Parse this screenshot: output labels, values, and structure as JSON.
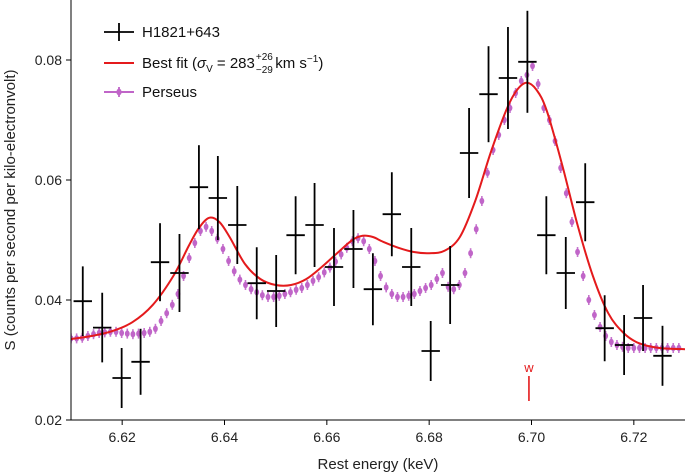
{
  "chart_data": {
    "type": "scatter",
    "xlabel": "Rest energy (keV)",
    "ylabel": "S (counts per second per kilo-electronvolt)",
    "xlim": [
      6.61,
      6.73
    ],
    "ylim": [
      0.02,
      0.09
    ],
    "x_ticks": [
      6.62,
      6.64,
      6.66,
      6.68,
      6.7,
      6.72
    ],
    "x_tick_labels": [
      "6.62",
      "6.64",
      "6.66",
      "6.68",
      "6.70",
      "6.72"
    ],
    "y_ticks": [
      0.02,
      0.04,
      0.06,
      0.08
    ],
    "y_tick_labels": [
      "0.02",
      "0.04",
      "0.06",
      "0.08"
    ],
    "legend": {
      "placement": "top-left",
      "entries": [
        {
          "label": "H1821+643",
          "color": "#000000",
          "marker": "errorbar"
        },
        {
          "label": "Best fit (σV = 283 km s−1)",
          "label_prefix": "Best fit (",
          "sigma": "σ",
          "sigma_sub": "V",
          "value": " = 283",
          "err_up": "+26",
          "err_down": "−29",
          "unit": " km s",
          "unit_sup": "−1",
          "suffix": ")",
          "color": "#e41a1c",
          "marker": "line"
        },
        {
          "label": "Perseus",
          "color": "#c065c8",
          "marker": "errorbar"
        }
      ]
    },
    "annotation": {
      "text": "w",
      "x": 6.6995,
      "color": "#e41a1c"
    },
    "series": [
      {
        "name": "H1821+643",
        "color": "#000000",
        "points": [
          {
            "x": 6.6123,
            "y": 0.0398,
            "xerr": 0.0018,
            "yerr": 0.0058
          },
          {
            "x": 6.6161,
            "y": 0.0354,
            "xerr": 0.0018,
            "yerr": 0.0058
          },
          {
            "x": 6.6199,
            "y": 0.027,
            "xerr": 0.0018,
            "yerr": 0.005
          },
          {
            "x": 6.6236,
            "y": 0.0297,
            "xerr": 0.0018,
            "yerr": 0.0055
          },
          {
            "x": 6.6274,
            "y": 0.0463,
            "xerr": 0.0018,
            "yerr": 0.0065
          },
          {
            "x": 6.6312,
            "y": 0.0445,
            "xerr": 0.0018,
            "yerr": 0.0065
          },
          {
            "x": 6.635,
            "y": 0.0588,
            "xerr": 0.0018,
            "yerr": 0.007
          },
          {
            "x": 6.6387,
            "y": 0.057,
            "xerr": 0.0018,
            "yerr": 0.007
          },
          {
            "x": 6.6425,
            "y": 0.0525,
            "xerr": 0.0018,
            "yerr": 0.0065
          },
          {
            "x": 6.6463,
            "y": 0.0428,
            "xerr": 0.0018,
            "yerr": 0.006
          },
          {
            "x": 6.6501,
            "y": 0.0415,
            "xerr": 0.0018,
            "yerr": 0.006
          },
          {
            "x": 6.6539,
            "y": 0.0508,
            "xerr": 0.0018,
            "yerr": 0.0065
          },
          {
            "x": 6.6576,
            "y": 0.0525,
            "xerr": 0.0018,
            "yerr": 0.007
          },
          {
            "x": 6.6614,
            "y": 0.0455,
            "xerr": 0.0018,
            "yerr": 0.0065
          },
          {
            "x": 6.6652,
            "y": 0.0485,
            "xerr": 0.0018,
            "yerr": 0.0065
          },
          {
            "x": 6.669,
            "y": 0.0418,
            "xerr": 0.0018,
            "yerr": 0.006
          },
          {
            "x": 6.6727,
            "y": 0.0543,
            "xerr": 0.0018,
            "yerr": 0.007
          },
          {
            "x": 6.6765,
            "y": 0.0455,
            "xerr": 0.0018,
            "yerr": 0.0065
          },
          {
            "x": 6.6803,
            "y": 0.0315,
            "xerr": 0.0018,
            "yerr": 0.005
          },
          {
            "x": 6.6841,
            "y": 0.0425,
            "xerr": 0.0018,
            "yerr": 0.0065
          },
          {
            "x": 6.6878,
            "y": 0.0645,
            "xerr": 0.0018,
            "yerr": 0.0075
          },
          {
            "x": 6.6916,
            "y": 0.0743,
            "xerr": 0.0018,
            "yerr": 0.008
          },
          {
            "x": 6.6954,
            "y": 0.077,
            "xerr": 0.0018,
            "yerr": 0.0085
          },
          {
            "x": 6.6992,
            "y": 0.0797,
            "xerr": 0.0018,
            "yerr": 0.0085
          },
          {
            "x": 6.7029,
            "y": 0.0508,
            "xerr": 0.0018,
            "yerr": 0.0065
          },
          {
            "x": 6.7067,
            "y": 0.0445,
            "xerr": 0.0018,
            "yerr": 0.006
          },
          {
            "x": 6.7105,
            "y": 0.0563,
            "xerr": 0.0018,
            "yerr": 0.0065
          },
          {
            "x": 6.7143,
            "y": 0.0353,
            "xerr": 0.0018,
            "yerr": 0.0055
          },
          {
            "x": 6.7181,
            "y": 0.0325,
            "xerr": 0.0018,
            "yerr": 0.005
          },
          {
            "x": 6.7218,
            "y": 0.037,
            "xerr": 0.0018,
            "yerr": 0.0055
          },
          {
            "x": 6.7256,
            "y": 0.0307,
            "xerr": 0.0018,
            "yerr": 0.005
          }
        ]
      },
      {
        "name": "Perseus",
        "color": "#c065c8",
        "points": [
          {
            "x": 6.61,
            "y": 0.0336
          },
          {
            "x": 6.6111,
            "y": 0.0336
          },
          {
            "x": 6.6122,
            "y": 0.0337
          },
          {
            "x": 6.6133,
            "y": 0.034
          },
          {
            "x": 6.6144,
            "y": 0.0343
          },
          {
            "x": 6.6155,
            "y": 0.0345
          },
          {
            "x": 6.6166,
            "y": 0.0346
          },
          {
            "x": 6.6177,
            "y": 0.0347
          },
          {
            "x": 6.6188,
            "y": 0.0347
          },
          {
            "x": 6.6199,
            "y": 0.0345
          },
          {
            "x": 6.621,
            "y": 0.0344
          },
          {
            "x": 6.6221,
            "y": 0.0343
          },
          {
            "x": 6.6232,
            "y": 0.0344
          },
          {
            "x": 6.6243,
            "y": 0.0345
          },
          {
            "x": 6.6254,
            "y": 0.0347
          },
          {
            "x": 6.6265,
            "y": 0.0352
          },
          {
            "x": 6.6276,
            "y": 0.0365
          },
          {
            "x": 6.6287,
            "y": 0.0378
          },
          {
            "x": 6.6298,
            "y": 0.0392
          },
          {
            "x": 6.6309,
            "y": 0.041
          },
          {
            "x": 6.632,
            "y": 0.044
          },
          {
            "x": 6.6331,
            "y": 0.047
          },
          {
            "x": 6.6342,
            "y": 0.0495
          },
          {
            "x": 6.6353,
            "y": 0.0515
          },
          {
            "x": 6.6364,
            "y": 0.0522
          },
          {
            "x": 6.6375,
            "y": 0.0515
          },
          {
            "x": 6.6386,
            "y": 0.0502
          },
          {
            "x": 6.6397,
            "y": 0.0485
          },
          {
            "x": 6.6408,
            "y": 0.0465
          },
          {
            "x": 6.6419,
            "y": 0.0448
          },
          {
            "x": 6.643,
            "y": 0.0434
          },
          {
            "x": 6.6441,
            "y": 0.0425
          },
          {
            "x": 6.6452,
            "y": 0.0418
          },
          {
            "x": 6.6463,
            "y": 0.0413
          },
          {
            "x": 6.6474,
            "y": 0.0408
          },
          {
            "x": 6.6485,
            "y": 0.0405
          },
          {
            "x": 6.6496,
            "y": 0.0405
          },
          {
            "x": 6.6507,
            "y": 0.0407
          },
          {
            "x": 6.6518,
            "y": 0.041
          },
          {
            "x": 6.6529,
            "y": 0.0413
          },
          {
            "x": 6.654,
            "y": 0.0417
          },
          {
            "x": 6.6551,
            "y": 0.042
          },
          {
            "x": 6.6562,
            "y": 0.0425
          },
          {
            "x": 6.6573,
            "y": 0.0432
          },
          {
            "x": 6.6584,
            "y": 0.0438
          },
          {
            "x": 6.6595,
            "y": 0.0446
          },
          {
            "x": 6.6606,
            "y": 0.0454
          },
          {
            "x": 6.6617,
            "y": 0.0464
          },
          {
            "x": 6.6628,
            "y": 0.0476
          },
          {
            "x": 6.6639,
            "y": 0.0487
          },
          {
            "x": 6.665,
            "y": 0.0498
          },
          {
            "x": 6.6661,
            "y": 0.0503
          },
          {
            "x": 6.6672,
            "y": 0.0498
          },
          {
            "x": 6.6683,
            "y": 0.0485
          },
          {
            "x": 6.6694,
            "y": 0.0465
          },
          {
            "x": 6.6705,
            "y": 0.044
          },
          {
            "x": 6.6716,
            "y": 0.0421
          },
          {
            "x": 6.6727,
            "y": 0.041
          },
          {
            "x": 6.6738,
            "y": 0.0405
          },
          {
            "x": 6.6749,
            "y": 0.0405
          },
          {
            "x": 6.676,
            "y": 0.0407
          },
          {
            "x": 6.6771,
            "y": 0.041
          },
          {
            "x": 6.6782,
            "y": 0.0415
          },
          {
            "x": 6.6793,
            "y": 0.042
          },
          {
            "x": 6.6804,
            "y": 0.0425
          },
          {
            "x": 6.6815,
            "y": 0.0435
          },
          {
            "x": 6.6826,
            "y": 0.0445
          },
          {
            "x": 6.6837,
            "y": 0.0422
          },
          {
            "x": 6.6848,
            "y": 0.0418
          },
          {
            "x": 6.6859,
            "y": 0.0425
          },
          {
            "x": 6.687,
            "y": 0.0445
          },
          {
            "x": 6.6881,
            "y": 0.0478
          },
          {
            "x": 6.6892,
            "y": 0.0518
          },
          {
            "x": 6.6903,
            "y": 0.0565
          },
          {
            "x": 6.6914,
            "y": 0.0612
          },
          {
            "x": 6.6925,
            "y": 0.065
          },
          {
            "x": 6.6936,
            "y": 0.0675
          },
          {
            "x": 6.6947,
            "y": 0.07
          },
          {
            "x": 6.6958,
            "y": 0.072
          },
          {
            "x": 6.6969,
            "y": 0.0745
          },
          {
            "x": 6.698,
            "y": 0.0765
          },
          {
            "x": 6.6991,
            "y": 0.0775
          },
          {
            "x": 6.7002,
            "y": 0.079
          },
          {
            "x": 6.7013,
            "y": 0.076
          },
          {
            "x": 6.7024,
            "y": 0.072
          },
          {
            "x": 6.7035,
            "y": 0.07
          },
          {
            "x": 6.7046,
            "y": 0.0665
          },
          {
            "x": 6.7057,
            "y": 0.062
          },
          {
            "x": 6.7068,
            "y": 0.0578
          },
          {
            "x": 6.7079,
            "y": 0.053
          },
          {
            "x": 6.709,
            "y": 0.048
          },
          {
            "x": 6.7101,
            "y": 0.044
          },
          {
            "x": 6.7112,
            "y": 0.04
          },
          {
            "x": 6.7123,
            "y": 0.0375
          },
          {
            "x": 6.7134,
            "y": 0.0355
          },
          {
            "x": 6.7145,
            "y": 0.034
          },
          {
            "x": 6.7156,
            "y": 0.033
          },
          {
            "x": 6.7167,
            "y": 0.0325
          },
          {
            "x": 6.7178,
            "y": 0.0322
          },
          {
            "x": 6.7189,
            "y": 0.032
          },
          {
            "x": 6.72,
            "y": 0.032
          },
          {
            "x": 6.7211,
            "y": 0.032
          },
          {
            "x": 6.7222,
            "y": 0.032
          },
          {
            "x": 6.7233,
            "y": 0.032
          },
          {
            "x": 6.7244,
            "y": 0.032
          },
          {
            "x": 6.7255,
            "y": 0.032
          },
          {
            "x": 6.7266,
            "y": 0.032
          },
          {
            "x": 6.7277,
            "y": 0.032
          },
          {
            "x": 6.7288,
            "y": 0.032
          }
        ]
      },
      {
        "name": "Best fit",
        "color": "#e41a1c",
        "points": [
          {
            "x": 6.61,
            "y": 0.0335
          },
          {
            "x": 6.614,
            "y": 0.034
          },
          {
            "x": 6.618,
            "y": 0.0348
          },
          {
            "x": 6.622,
            "y": 0.0363
          },
          {
            "x": 6.626,
            "y": 0.0392
          },
          {
            "x": 6.63,
            "y": 0.044
          },
          {
            "x": 6.633,
            "y": 0.049
          },
          {
            "x": 6.635,
            "y": 0.052
          },
          {
            "x": 6.637,
            "y": 0.0537
          },
          {
            "x": 6.639,
            "y": 0.053
          },
          {
            "x": 6.641,
            "y": 0.0505
          },
          {
            "x": 6.644,
            "y": 0.046
          },
          {
            "x": 6.647,
            "y": 0.0435
          },
          {
            "x": 6.65,
            "y": 0.0425
          },
          {
            "x": 6.653,
            "y": 0.0425
          },
          {
            "x": 6.656,
            "y": 0.0435
          },
          {
            "x": 6.659,
            "y": 0.0455
          },
          {
            "x": 6.662,
            "y": 0.0478
          },
          {
            "x": 6.665,
            "y": 0.05
          },
          {
            "x": 6.667,
            "y": 0.0507
          },
          {
            "x": 6.669,
            "y": 0.0505
          },
          {
            "x": 6.671,
            "y": 0.0497
          },
          {
            "x": 6.674,
            "y": 0.0487
          },
          {
            "x": 6.677,
            "y": 0.048
          },
          {
            "x": 6.68,
            "y": 0.0478
          },
          {
            "x": 6.683,
            "y": 0.0482
          },
          {
            "x": 6.686,
            "y": 0.0505
          },
          {
            "x": 6.689,
            "y": 0.0565
          },
          {
            "x": 6.692,
            "y": 0.0645
          },
          {
            "x": 6.695,
            "y": 0.0715
          },
          {
            "x": 6.697,
            "y": 0.0748
          },
          {
            "x": 6.699,
            "y": 0.0762
          },
          {
            "x": 6.701,
            "y": 0.075
          },
          {
            "x": 6.703,
            "y": 0.0715
          },
          {
            "x": 6.706,
            "y": 0.0625
          },
          {
            "x": 6.709,
            "y": 0.0525
          },
          {
            "x": 6.712,
            "y": 0.044
          },
          {
            "x": 6.715,
            "y": 0.0378
          },
          {
            "x": 6.718,
            "y": 0.0345
          },
          {
            "x": 6.721,
            "y": 0.0328
          },
          {
            "x": 6.725,
            "y": 0.032
          },
          {
            "x": 6.73,
            "y": 0.0318
          }
        ]
      }
    ]
  }
}
